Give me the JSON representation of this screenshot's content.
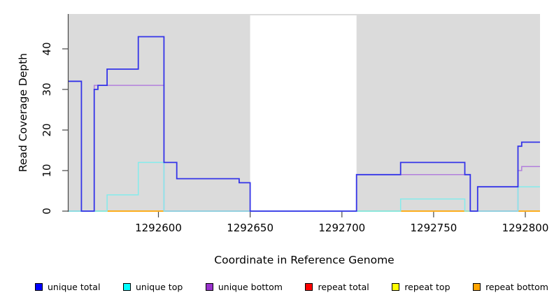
{
  "figure": {
    "x_axis_title": "Coordinate in Reference Genome",
    "y_axis_title": "Read Coverage Depth"
  },
  "chart_data": {
    "type": "line",
    "subtype": "step-function-coverage",
    "title": "",
    "xlabel": "Coordinate in Reference Genome",
    "ylabel": "Read Coverage Depth",
    "xlim": [
      1292551,
      1292808
    ],
    "ylim": [
      0,
      48.6
    ],
    "grid": false,
    "legend_position": "bottom",
    "x_ticks": [
      {
        "value": 1292600,
        "label": "1292600"
      },
      {
        "value": 1292650,
        "label": "1292650"
      },
      {
        "value": 1292700,
        "label": "1292700"
      },
      {
        "value": 1292750,
        "label": "1292750"
      },
      {
        "value": 1292800,
        "label": "1292800"
      }
    ],
    "y_ticks": [
      {
        "value": 0,
        "label": "0"
      },
      {
        "value": 10,
        "label": "10"
      },
      {
        "value": 20,
        "label": "20"
      },
      {
        "value": 30,
        "label": "30"
      },
      {
        "value": 40,
        "label": "40"
      }
    ],
    "masked_region": {
      "from": 1292650,
      "to": 1292708,
      "fill": "#FFFFFF"
    },
    "colors": {
      "plot_bg": "#DBDBDB",
      "axis": "#474747",
      "unique_total_line": "#3434E8",
      "unique_top_line": "#84ECEC",
      "unique_bottom_line": "#B27FDC",
      "green_overlap": "#8FCE8F",
      "crimson_overlap": "#C84871",
      "orange_line": "#FFA500"
    },
    "series": [
      {
        "name": "unique total",
        "color_key": "unique_total_line",
        "width": 1.8,
        "segments": [
          [
            1292551,
            1292558,
            32
          ],
          [
            1292558,
            1292565,
            0
          ],
          [
            1292565,
            1292567,
            30
          ],
          [
            1292567,
            1292572,
            31
          ],
          [
            1292572,
            1292589,
            35
          ],
          [
            1292589,
            1292603,
            43
          ],
          [
            1292603,
            1292610,
            12
          ],
          [
            1292610,
            1292644,
            8
          ],
          [
            1292644,
            1292650,
            7
          ],
          [
            1292650,
            1292708,
            0
          ],
          [
            1292708,
            1292732,
            9
          ],
          [
            1292732,
            1292767,
            12
          ],
          [
            1292767,
            1292770,
            9
          ],
          [
            1292770,
            1292774,
            0
          ],
          [
            1292774,
            1292796,
            6
          ],
          [
            1292796,
            1292798,
            16
          ],
          [
            1292798,
            1292808,
            17
          ]
        ]
      },
      {
        "name": "unique top",
        "color_key": "unique_top_line",
        "width": 1.5,
        "segments": [
          [
            1292551,
            1292572,
            0
          ],
          [
            1292572,
            1292589,
            4
          ],
          [
            1292589,
            1292603,
            12
          ],
          [
            1292603,
            1292732,
            0
          ],
          [
            1292732,
            1292767,
            3
          ],
          [
            1292767,
            1292796,
            0
          ],
          [
            1292796,
            1292808,
            6
          ]
        ]
      },
      {
        "name": "unique bottom",
        "color_key": "unique_bottom_line",
        "width": 1.5,
        "segments": [
          [
            1292551,
            1292565,
            0
          ],
          [
            1292565,
            1292603,
            31
          ],
          [
            1292603,
            1292708,
            0
          ],
          [
            1292708,
            1292770,
            9
          ],
          [
            1292770,
            1292796,
            0
          ],
          [
            1292796,
            1292798,
            10
          ],
          [
            1292798,
            1292808,
            11
          ]
        ]
      },
      {
        "name": "repeat total",
        "color_key": "crimson_overlap",
        "width": 1.5,
        "segments": [
          [
            1292551,
            1292808,
            0
          ]
        ]
      },
      {
        "name": "repeat top",
        "color_key": "green_overlap",
        "width": 1.5,
        "segments": [
          [
            1292551,
            1292808,
            0
          ]
        ]
      },
      {
        "name": "repeat bottom",
        "color_key": "orange_line",
        "width": 1.5,
        "segments": [
          [
            1292551,
            1292808,
            0
          ]
        ]
      }
    ],
    "baseline_overlap_segments": [
      {
        "from": 1292551,
        "to": 1292572,
        "color_key": "green_overlap"
      },
      {
        "from": 1292572,
        "to": 1292603,
        "color_key": "orange_line"
      },
      {
        "from": 1292603,
        "to": 1292650,
        "color_key": "crimson_overlap"
      },
      {
        "from": 1292708,
        "to": 1292732,
        "color_key": "green_overlap"
      },
      {
        "from": 1292732,
        "to": 1292774,
        "color_key": "orange_line"
      },
      {
        "from": 1292774,
        "to": 1292796,
        "color_key": "crimson_overlap"
      },
      {
        "from": 1292796,
        "to": 1292808,
        "color_key": "orange_line"
      }
    ],
    "draw_order": [
      "unique bottom",
      "unique top",
      "unique total"
    ],
    "legend": [
      {
        "label": "unique total",
        "swatch": "#0000FF"
      },
      {
        "label": "unique top",
        "swatch": "#00FFFF"
      },
      {
        "label": "unique bottom",
        "swatch": "#9932CC"
      },
      {
        "label": "repeat total",
        "swatch": "#FF0000"
      },
      {
        "label": "repeat top",
        "swatch": "#FFFF00"
      },
      {
        "label": "repeat bottom",
        "swatch": "#FFA500"
      }
    ]
  }
}
